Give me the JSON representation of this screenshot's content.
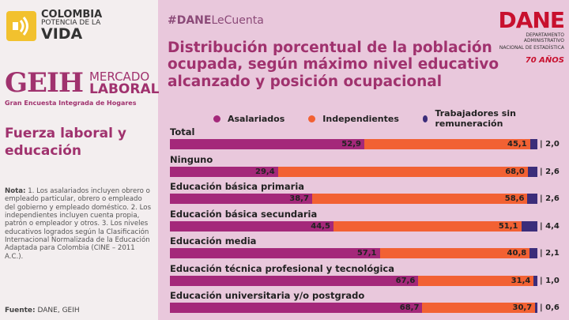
{
  "brand": {
    "colombia_line1": "COLOMBIA",
    "colombia_line2": "POTENCIA DE LA",
    "colombia_line3": "VIDA",
    "geih_logo": "GEIH",
    "geih_words1": "MERCADO",
    "geih_words2": "LABORAL",
    "geih_sub": "Gran Encuesta Integrada de Hogares",
    "dane_word": "DANE",
    "dane_sub1": "DEPARTAMENTO ADMINISTRATIVO",
    "dane_sub2": "NACIONAL DE ESTADÍSTICA",
    "dane_anniv": "70 AÑOS"
  },
  "sidebar": {
    "section_title": "Fuerza laboral y educación",
    "note_label": "Nota:",
    "note_text": "1. Los asalariados incluyen obrero o empleado particular, obrero o empleado del gobierno y empleado doméstico. 2. Los independientes incluyen cuenta propia, patrón o empleador y otros. 3. Los niveles educativos logrados según la Clasificación Internacional Normalizada de la Educación Adaptada para Colombia (CINE – 2011 A.C.).",
    "source_label": "Fuente:",
    "source_text": "DANE, GEIH"
  },
  "header": {
    "hashtag_bold": "#DANE",
    "hashtag_rest": "LeCuenta"
  },
  "colors": {
    "asalariados": "#a4287a",
    "independientes": "#f26133",
    "sin_remuneracion": "#3b2d7a"
  },
  "chart_data": {
    "type": "bar",
    "orientation": "horizontal-stacked",
    "title": "Distribución porcentual de la población ocupada, según máximo nivel educativo alcanzado y posición ocupacional",
    "legend": [
      "Asalariados",
      "Independientes",
      "Trabajadores sin remuneración"
    ],
    "categories": [
      "Total",
      "Ninguno",
      "Educación básica primaria",
      "Educación básica secundaria",
      "Educación media",
      "Educación técnica profesional y tecnológica",
      "Educación universitaria y/o postgrado"
    ],
    "series": [
      {
        "name": "Asalariados",
        "values": [
          52.9,
          29.4,
          38.7,
          44.5,
          57.1,
          67.6,
          68.7
        ],
        "labels": [
          "52,9",
          "29,4",
          "38,7",
          "44,5",
          "57,1",
          "67,6",
          "68,7"
        ]
      },
      {
        "name": "Independientes",
        "values": [
          45.1,
          68.0,
          58.6,
          51.1,
          40.8,
          31.4,
          30.7
        ],
        "labels": [
          "45,1",
          "68,0",
          "58,6",
          "51,1",
          "40,8",
          "31,4",
          "30,7"
        ]
      },
      {
        "name": "Trabajadores sin remuneración",
        "values": [
          2.0,
          2.6,
          2.6,
          4.4,
          2.1,
          1.0,
          0.6
        ],
        "labels": [
          "2,0",
          "2,6",
          "2,6",
          "4,4",
          "2,1",
          "1,0",
          "0,6"
        ]
      }
    ],
    "xlim": [
      0,
      100
    ]
  }
}
